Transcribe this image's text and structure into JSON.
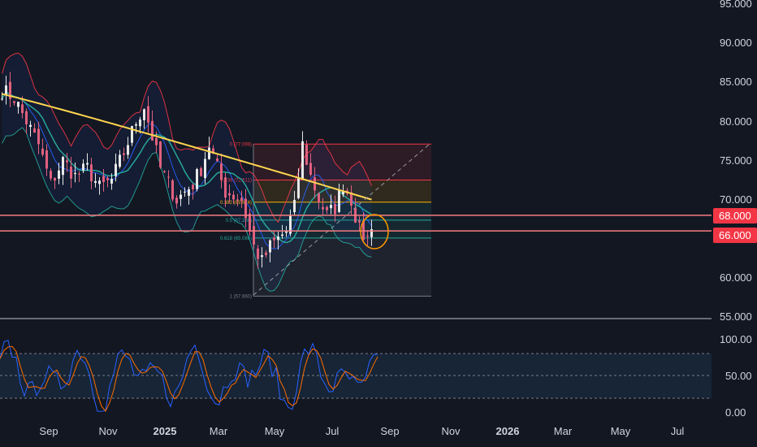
{
  "colors": {
    "background": "#131722",
    "up": "#e8e8e8",
    "down": "#e0607e",
    "ma200": "#ffd54f",
    "ma50": "#26a69a",
    "bb": "#f23645",
    "bb_mid": "#2962ff",
    "support": "#f77c80",
    "tag_bg": "#f23645",
    "stoch_k": "#2962ff",
    "stoch_d": "#ff6d00",
    "axis_text": "#d1d4dc"
  },
  "price_axis": {
    "ticks": [
      "95.000",
      "90.000",
      "85.000",
      "80.000",
      "75.000",
      "70.000",
      "60.000",
      "55.000"
    ]
  },
  "price_tags": [
    {
      "label": "68.000",
      "value": 68.0
    },
    {
      "label": "66.000",
      "value": 66.0
    }
  ],
  "osc_axis": {
    "ticks": [
      "100.00",
      "50.00",
      "0.00"
    ]
  },
  "time_axis": {
    "labels": [
      "Sep",
      "Nov",
      "2025",
      "Mar",
      "May",
      "Jul",
      "Sep",
      "Nov",
      "2026",
      "Mar",
      "May",
      "Jul"
    ]
  },
  "fib": {
    "levels": [
      {
        "label": "0 (77.099)",
        "value": 77.099,
        "color": "#f23645"
      },
      {
        "label": "0.236 (72.511)",
        "value": 72.511,
        "color": "#f23645"
      },
      {
        "label": "0.382 (69.674)",
        "value": 69.674,
        "color": "#ffb300"
      },
      {
        "label": "0.5 (67.380)",
        "value": 67.38,
        "color": "#26a69a"
      },
      {
        "label": "0.618 (65.086)",
        "value": 65.086,
        "color": "#26a69a"
      },
      {
        "label": "1 (57.660)",
        "value": 57.66,
        "color": "#787b86"
      }
    ]
  },
  "chart_data": {
    "type": "candlestick",
    "price_scale": {
      "ylim": [
        55,
        95
      ]
    },
    "oscillator_scale": {
      "ylim": [
        0,
        100
      ],
      "bands": [
        20,
        80
      ]
    },
    "support_levels": [
      68.0,
      66.0
    ],
    "price_path": [
      [
        0,
        84
      ],
      [
        3,
        83
      ],
      [
        6,
        80
      ],
      [
        9,
        77
      ],
      [
        12,
        72
      ],
      [
        15,
        75
      ],
      [
        18,
        73
      ],
      [
        21,
        74
      ],
      [
        24,
        71.5
      ],
      [
        27,
        72.5
      ],
      [
        30,
        76
      ],
      [
        33,
        80
      ],
      [
        35,
        82
      ],
      [
        37,
        78
      ],
      [
        39,
        74
      ],
      [
        41,
        72
      ],
      [
        43,
        70
      ],
      [
        45,
        71
      ],
      [
        47,
        72
      ],
      [
        49,
        74
      ],
      [
        51,
        77
      ],
      [
        53,
        74
      ],
      [
        55,
        71
      ],
      [
        57,
        70.5
      ],
      [
        59,
        70
      ],
      [
        60,
        68
      ],
      [
        62,
        64
      ],
      [
        64,
        62
      ],
      [
        66,
        64
      ],
      [
        68,
        65
      ],
      [
        70,
        66
      ],
      [
        72,
        69
      ],
      [
        74,
        77
      ],
      [
        76,
        73
      ],
      [
        78,
        70
      ],
      [
        80,
        68
      ],
      [
        82,
        69
      ],
      [
        84,
        72
      ],
      [
        86,
        70
      ],
      [
        88,
        66
      ],
      [
        90,
        65
      ],
      [
        91,
        67
      ]
    ]
  }
}
